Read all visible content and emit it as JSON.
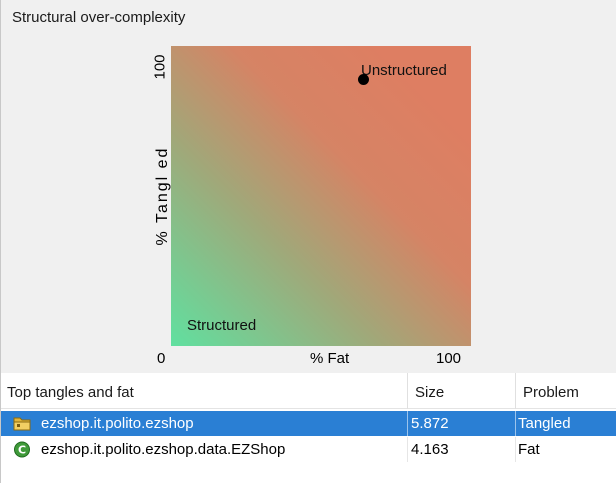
{
  "panel": {
    "title": "Structural over-complexity"
  },
  "chart_data": {
    "type": "scatter",
    "xlabel": "% Fat",
    "ylabel": "% Tangl ed",
    "xlim": [
      0,
      100
    ],
    "ylim": [
      0,
      100
    ],
    "x_ticks": [
      "0",
      "100"
    ],
    "y_ticks": [
      "100"
    ],
    "region_labels": {
      "structured": "Structured",
      "unstructured": "Unstructured"
    },
    "colors": {
      "structured": "#60e0a0",
      "unstructured": "#de7e62"
    },
    "points": [
      {
        "x": 64,
        "y": 89
      }
    ]
  },
  "table": {
    "headers": {
      "name": "Top tangles and fat",
      "size": "Size",
      "problem": "Problem"
    },
    "rows": [
      {
        "icon": "package-folder-icon",
        "name": "ezshop.it.polito.ezshop",
        "size": "5.872",
        "problem": "Tangled",
        "selected": true
      },
      {
        "icon": "class-icon",
        "name": "ezshop.it.polito.ezshop.data.EZShop",
        "size": "4.163",
        "problem": "Fat",
        "selected": false
      }
    ]
  }
}
